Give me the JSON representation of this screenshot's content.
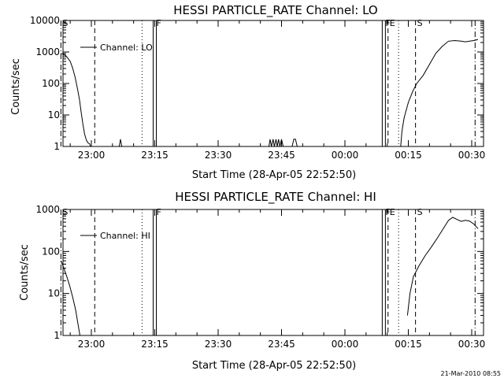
{
  "timestamp": "21-Mar-2010 08:55",
  "chart_data": [
    {
      "type": "line",
      "title": "HESSI PARTICLE_RATE Channel: LO",
      "xlabel": "Start Time (28-Apr-05 22:52:50)",
      "ylabel": "Counts/sec",
      "y_scale": "log",
      "ylim": [
        1,
        10000
      ],
      "y_tick_labels": [
        "1",
        "10",
        "100",
        "1000",
        "10000"
      ],
      "xlim_minutes": [
        -7.2,
        38.5
      ],
      "x_tick_labels": [
        "23:00",
        "23:15",
        "23:30",
        "23:45",
        "00:00",
        "00:15",
        "00:30"
      ],
      "legend": {
        "label": "Channel: LO",
        "placement": "top-left"
      },
      "series": [
        {
          "name": "Channel: LO",
          "points": [
            [
              -7.2,
              900
            ],
            [
              -6.5,
              850
            ],
            [
              -5.8,
              700
            ],
            [
              -5.0,
              500
            ],
            [
              -4.4,
              300
            ],
            [
              -3.8,
              150
            ],
            [
              -3.3,
              70
            ],
            [
              -2.8,
              30
            ],
            [
              -2.4,
              12
            ],
            [
              -2.0,
              5
            ],
            [
              -1.6,
              2.5
            ],
            [
              -1.2,
              1.6
            ],
            [
              -0.8,
              1.3
            ],
            [
              -0.4,
              1.2
            ],
            [
              -0.2,
              1.0
            ]
          ]
        },
        {
          "name": "Channel: LO",
          "points": [
            [
              6.6,
              1
            ],
            [
              6.9,
              1.7
            ],
            [
              7.2,
              1
            ]
          ]
        },
        {
          "name": "Channel: LO",
          "points": [
            [
              42.0,
              1
            ],
            [
              42.3,
              1.7
            ],
            [
              42.6,
              1
            ],
            [
              43.0,
              1.7
            ],
            [
              43.3,
              1
            ],
            [
              43.7,
              1.7
            ],
            [
              44.0,
              1
            ],
            [
              44.3,
              1.7
            ],
            [
              44.6,
              1
            ],
            [
              45.0,
              1.7
            ],
            [
              45.4,
              1
            ]
          ]
        },
        {
          "name": "Channel: LO",
          "points": [
            [
              47.5,
              1
            ],
            [
              47.9,
              1.7
            ],
            [
              48.3,
              1.7
            ],
            [
              48.7,
              1
            ]
          ]
        },
        {
          "name": "Channel: LO",
          "points": [
            [
              73.2,
              1
            ],
            [
              73.5,
              3
            ],
            [
              74.0,
              8
            ],
            [
              75.0,
              25
            ],
            [
              76.0,
              55
            ],
            [
              77.0,
              100
            ],
            [
              78.5,
              180
            ],
            [
              80.0,
              400
            ],
            [
              81.5,
              900
            ],
            [
              83.0,
              1500
            ],
            [
              84.5,
              2200
            ],
            [
              86.0,
              2300
            ],
            [
              87.5,
              2200
            ],
            [
              88.5,
              2100
            ],
            [
              89.5,
              2200
            ],
            [
              90.5,
              2300
            ],
            [
              91.5,
              2500
            ]
          ]
        }
      ],
      "events": [
        {
          "label": "S",
          "minute": -7.2,
          "style": "dash-dot"
        },
        {
          "label": "",
          "minute": 0.8,
          "style": "dashed"
        },
        {
          "label": "",
          "minute": 12.0,
          "style": "dotted"
        },
        {
          "label": "F",
          "minute": 15.0,
          "style": "solid-double"
        },
        {
          "label": "F",
          "minute": 69.2,
          "style": "solid-double"
        },
        {
          "label": "E",
          "minute": 70.2,
          "style": "dashed"
        },
        {
          "label": "",
          "minute": 72.7,
          "style": "dotted"
        },
        {
          "label": "S",
          "minute": 76.7,
          "style": "dashed"
        },
        {
          "label": "",
          "minute": 90.8,
          "style": "dash-dot"
        }
      ]
    },
    {
      "type": "line",
      "title": "HESSI PARTICLE_RATE Channel: HI",
      "xlabel": "Start Time (28-Apr-05 22:52:50)",
      "ylabel": "Counts/sec",
      "y_scale": "log",
      "ylim": [
        1,
        1000
      ],
      "y_tick_labels": [
        "1",
        "10",
        "100",
        "1000"
      ],
      "xlim_minutes": [
        -7.2,
        38.5
      ],
      "x_tick_labels": [
        "23:00",
        "23:15",
        "23:30",
        "23:45",
        "00:00",
        "00:15",
        "00:30"
      ],
      "legend": {
        "label": "Channel: HI",
        "placement": "top-left"
      },
      "series": [
        {
          "name": "Channel: HI",
          "points": [
            [
              -7.2,
              60
            ],
            [
              -6.5,
              40
            ],
            [
              -5.8,
              25
            ],
            [
              -5.1,
              15
            ],
            [
              -4.4,
              8
            ],
            [
              -3.7,
              4
            ],
            [
              -3.2,
              2
            ],
            [
              -2.7,
              1
            ]
          ]
        },
        {
          "name": "Channel: HI",
          "points": [
            [
              74.8,
              3
            ],
            [
              75.4,
              10
            ],
            [
              76.2,
              25
            ],
            [
              77.5,
              45
            ],
            [
              79.0,
              80
            ],
            [
              80.5,
              130
            ],
            [
              82.0,
              220
            ],
            [
              83.5,
              380
            ],
            [
              84.5,
              550
            ],
            [
              85.5,
              650
            ],
            [
              86.5,
              580
            ],
            [
              87.5,
              520
            ],
            [
              88.5,
              550
            ],
            [
              89.5,
              530
            ],
            [
              90.5,
              450
            ],
            [
              91.5,
              350
            ]
          ]
        }
      ],
      "events": [
        {
          "label": "S",
          "minute": -7.2,
          "style": "dash-dot"
        },
        {
          "label": "",
          "minute": 0.8,
          "style": "dashed"
        },
        {
          "label": "",
          "minute": 12.0,
          "style": "dotted"
        },
        {
          "label": "F",
          "minute": 15.0,
          "style": "solid-double"
        },
        {
          "label": "F",
          "minute": 69.2,
          "style": "solid-double"
        },
        {
          "label": "E",
          "minute": 70.2,
          "style": "dashed"
        },
        {
          "label": "",
          "minute": 72.7,
          "style": "dotted"
        },
        {
          "label": "S",
          "minute": 76.7,
          "style": "dashed"
        },
        {
          "label": "",
          "minute": 90.8,
          "style": "dash-dot"
        }
      ]
    }
  ]
}
